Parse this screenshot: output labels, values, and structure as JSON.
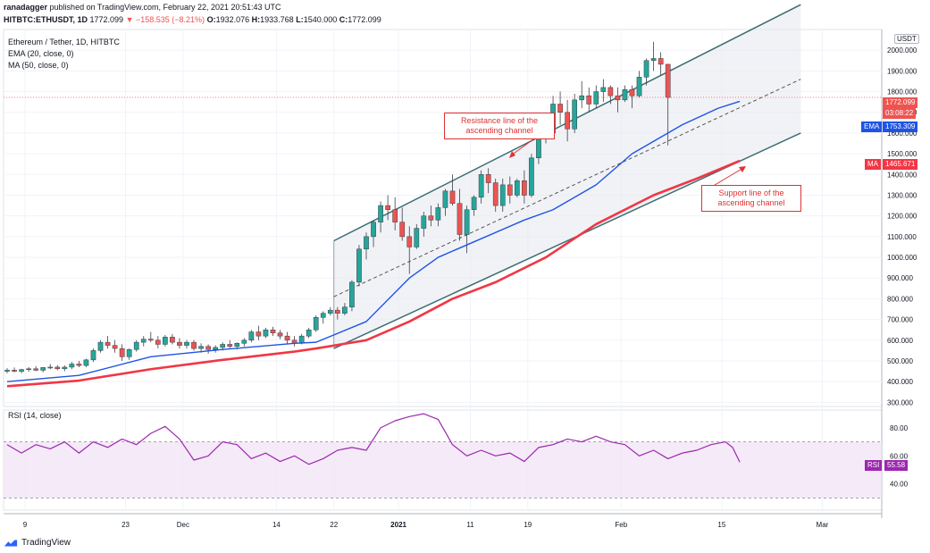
{
  "header": {
    "publisher": "ranadagger",
    "published_text": "published on TradingView.com, February 22, 2021 20:51:43 UTC",
    "symbol": "HITBTC:ETHUSDT, 1D",
    "last": "1772.099",
    "change": "▼ −158.535 (−8.21%)",
    "open_label": "O:",
    "open": "1932.076",
    "high_label": "H:",
    "high": "1933.768",
    "low_label": "L:",
    "low": "1540.000",
    "close_label": "C:",
    "close": "1772.099"
  },
  "legend": {
    "title": "Ethereum / Tether, 1D, HITBTC",
    "ema": "EMA (20, close, 0)",
    "ma": "MA (50, close, 0)",
    "rsi": "RSI (14, close)"
  },
  "price_scale": {
    "currency": "USDT",
    "last_price": "1772.099",
    "countdown": "03:08:22",
    "ema_label": "EMA",
    "ema_value": "1753.309",
    "ma_label": "MA",
    "ma_value": "1465.671",
    "rsi_label": "RSI",
    "rsi_value": "55.58"
  },
  "annotations": {
    "resistance": "Resistance line of the ascending channel",
    "support": "Support line of the ascending channel"
  },
  "footer": {
    "brand": "TradingView"
  },
  "colors": {
    "up": "#26a69a",
    "down": "#ef5350",
    "ema": "#1e53e5",
    "ma": "#f23645",
    "rsi": "#9c27b0",
    "channel": "#3c6e71",
    "annotation": "#e03131"
  },
  "chart_data": [
    {
      "type": "candlestick",
      "title": "Ethereum / Tether, 1D, HITBTC",
      "y_ticks": [
        "300.000",
        "400.000",
        "500.000",
        "600.000",
        "700.000",
        "800.000",
        "900.000",
        "1000.000",
        "1100.000",
        "1200.000",
        "1300.000",
        "1400.000",
        "1500.000",
        "1600.000",
        "1700.000",
        "1800.000",
        "1900.000",
        "2000.000"
      ],
      "ylim": [
        280,
        2100
      ],
      "x_ticks": [
        {
          "label": "9",
          "day": 0
        },
        {
          "label": "23",
          "day": 14
        },
        {
          "label": "Dec",
          "day": 22
        },
        {
          "label": "14",
          "day": 35
        },
        {
          "label": "22",
          "day": 43
        },
        {
          "label": "2021",
          "day": 52
        },
        {
          "label": "11",
          "day": 62
        },
        {
          "label": "19",
          "day": 70
        },
        {
          "label": "Feb",
          "day": 83
        },
        {
          "label": "15",
          "day": 97
        },
        {
          "label": "Mar",
          "day": 111
        }
      ],
      "candles": [
        [
          450,
          465,
          440,
          455
        ],
        [
          455,
          468,
          445,
          450
        ],
        [
          450,
          462,
          440,
          458
        ],
        [
          458,
          470,
          448,
          462
        ],
        [
          462,
          475,
          450,
          455
        ],
        [
          455,
          470,
          445,
          468
        ],
        [
          468,
          485,
          460,
          470
        ],
        [
          470,
          480,
          455,
          462
        ],
        [
          462,
          478,
          450,
          470
        ],
        [
          470,
          495,
          460,
          485
        ],
        [
          485,
          500,
          470,
          478
        ],
        [
          478,
          510,
          470,
          505
        ],
        [
          505,
          560,
          495,
          550
        ],
        [
          550,
          600,
          540,
          590
        ],
        [
          590,
          620,
          560,
          575
        ],
        [
          575,
          600,
          540,
          560
        ],
        [
          560,
          580,
          500,
          520
        ],
        [
          520,
          560,
          505,
          555
        ],
        [
          555,
          600,
          545,
          590
        ],
        [
          590,
          620,
          570,
          605
        ],
        [
          605,
          640,
          590,
          600
        ],
        [
          600,
          620,
          560,
          580
        ],
        [
          580,
          625,
          570,
          615
        ],
        [
          615,
          630,
          580,
          590
        ],
        [
          590,
          610,
          560,
          575
        ],
        [
          575,
          600,
          560,
          590
        ],
        [
          590,
          600,
          550,
          560
        ],
        [
          560,
          585,
          540,
          570
        ],
        [
          570,
          580,
          535,
          555
        ],
        [
          555,
          575,
          540,
          565
        ],
        [
          565,
          590,
          550,
          580
        ],
        [
          580,
          600,
          560,
          570
        ],
        [
          570,
          590,
          555,
          585
        ],
        [
          585,
          610,
          570,
          600
        ],
        [
          600,
          650,
          590,
          640
        ],
        [
          640,
          670,
          600,
          620
        ],
        [
          620,
          660,
          610,
          650
        ],
        [
          650,
          665,
          620,
          635
        ],
        [
          635,
          650,
          605,
          620
        ],
        [
          620,
          640,
          580,
          600
        ],
        [
          600,
          620,
          570,
          585
        ],
        [
          585,
          630,
          580,
          620
        ],
        [
          620,
          660,
          610,
          650
        ],
        [
          650,
          720,
          640,
          710
        ],
        [
          710,
          740,
          680,
          730
        ],
        [
          730,
          760,
          720,
          745
        ],
        [
          745,
          760,
          700,
          730
        ],
        [
          730,
          780,
          720,
          760
        ],
        [
          760,
          890,
          740,
          880
        ],
        [
          880,
          1060,
          860,
          1040
        ],
        [
          1040,
          1120,
          990,
          1100
        ],
        [
          1100,
          1180,
          1050,
          1170
        ],
        [
          1170,
          1270,
          1120,
          1250
        ],
        [
          1250,
          1300,
          1180,
          1230
        ],
        [
          1230,
          1290,
          1130,
          1170
        ],
        [
          1170,
          1240,
          1080,
          1100
        ],
        [
          1100,
          1150,
          920,
          1050
        ],
        [
          1050,
          1160,
          1040,
          1140
        ],
        [
          1140,
          1220,
          1100,
          1200
        ],
        [
          1200,
          1250,
          1150,
          1180
        ],
        [
          1180,
          1260,
          1150,
          1240
        ],
        [
          1240,
          1330,
          1200,
          1320
        ],
        [
          1320,
          1400,
          1250,
          1260
        ],
        [
          1260,
          1330,
          1080,
          1110
        ],
        [
          1110,
          1250,
          1020,
          1230
        ],
        [
          1230,
          1300,
          1200,
          1290
        ],
        [
          1290,
          1420,
          1260,
          1400
        ],
        [
          1400,
          1430,
          1310,
          1360
        ],
        [
          1360,
          1380,
          1220,
          1250
        ],
        [
          1250,
          1380,
          1220,
          1350
        ],
        [
          1350,
          1390,
          1260,
          1300
        ],
        [
          1300,
          1380,
          1290,
          1370
        ],
        [
          1370,
          1420,
          1260,
          1300
        ],
        [
          1300,
          1500,
          1290,
          1480
        ],
        [
          1480,
          1650,
          1450,
          1640
        ],
        [
          1640,
          1680,
          1550,
          1600
        ],
        [
          1600,
          1780,
          1580,
          1740
        ],
        [
          1740,
          1800,
          1640,
          1700
        ],
        [
          1700,
          1760,
          1560,
          1620
        ],
        [
          1620,
          1790,
          1600,
          1760
        ],
        [
          1760,
          1850,
          1720,
          1780
        ],
        [
          1780,
          1820,
          1700,
          1740
        ],
        [
          1740,
          1830,
          1720,
          1800
        ],
        [
          1800,
          1860,
          1750,
          1820
        ],
        [
          1820,
          1830,
          1740,
          1780
        ],
        [
          1780,
          1820,
          1700,
          1760
        ],
        [
          1760,
          1830,
          1750,
          1810
        ],
        [
          1810,
          1830,
          1720,
          1780
        ],
        [
          1780,
          1900,
          1770,
          1870
        ],
        [
          1870,
          1960,
          1830,
          1950
        ],
        [
          1950,
          2040,
          1900,
          1960
        ],
        [
          1960,
          1990,
          1880,
          1932
        ],
        [
          1932,
          1934,
          1540,
          1772
        ]
      ],
      "ema20": [
        [
          0,
          400
        ],
        [
          10,
          430
        ],
        [
          20,
          520
        ],
        [
          30,
          555
        ],
        [
          40,
          585
        ],
        [
          43,
          590
        ],
        [
          50,
          690
        ],
        [
          56,
          900
        ],
        [
          60,
          1000
        ],
        [
          66,
          1090
        ],
        [
          72,
          1180
        ],
        [
          76,
          1230
        ],
        [
          82,
          1350
        ],
        [
          87,
          1500
        ],
        [
          94,
          1640
        ],
        [
          99,
          1720
        ],
        [
          102,
          1753
        ]
      ],
      "ma50": [
        [
          0,
          378
        ],
        [
          10,
          405
        ],
        [
          20,
          460
        ],
        [
          30,
          505
        ],
        [
          40,
          545
        ],
        [
          43,
          560
        ],
        [
          50,
          600
        ],
        [
          56,
          690
        ],
        [
          62,
          800
        ],
        [
          68,
          880
        ],
        [
          75,
          1000
        ],
        [
          82,
          1160
        ],
        [
          90,
          1300
        ],
        [
          96,
          1380
        ],
        [
          102,
          1466
        ]
      ],
      "channel": {
        "resistance": [
          [
            43,
            1080
          ],
          [
            108,
            2220
          ]
        ],
        "support": [
          [
            43,
            560
          ],
          [
            108,
            1600
          ]
        ],
        "midline": [
          [
            43,
            810
          ],
          [
            108,
            1860
          ]
        ],
        "fill_start": 43
      },
      "last_price": 1772.099
    },
    {
      "type": "line",
      "title": "RSI (14, close)",
      "y_ticks": [
        "40.00",
        "60.00",
        "80.00"
      ],
      "ylim": [
        22,
        92
      ],
      "bands": [
        30,
        70
      ],
      "values": [
        [
          0,
          68
        ],
        [
          2,
          62
        ],
        [
          4,
          68
        ],
        [
          6,
          65
        ],
        [
          8,
          70
        ],
        [
          10,
          62
        ],
        [
          12,
          70
        ],
        [
          14,
          66
        ],
        [
          16,
          72
        ],
        [
          18,
          68
        ],
        [
          20,
          76
        ],
        [
          22,
          81
        ],
        [
          24,
          72
        ],
        [
          26,
          57
        ],
        [
          28,
          60
        ],
        [
          30,
          70
        ],
        [
          32,
          68
        ],
        [
          34,
          58
        ],
        [
          36,
          62
        ],
        [
          38,
          56
        ],
        [
          40,
          60
        ],
        [
          42,
          54
        ],
        [
          44,
          58
        ],
        [
          46,
          64
        ],
        [
          48,
          66
        ],
        [
          50,
          64
        ],
        [
          52,
          80
        ],
        [
          54,
          85
        ],
        [
          56,
          88
        ],
        [
          58,
          90
        ],
        [
          60,
          86
        ],
        [
          62,
          68
        ],
        [
          64,
          60
        ],
        [
          66,
          64
        ],
        [
          68,
          60
        ],
        [
          70,
          62
        ],
        [
          72,
          56
        ],
        [
          74,
          66
        ],
        [
          76,
          68
        ],
        [
          78,
          72
        ],
        [
          80,
          70
        ],
        [
          82,
          74
        ],
        [
          84,
          70
        ],
        [
          86,
          68
        ],
        [
          88,
          60
        ],
        [
          90,
          64
        ],
        [
          92,
          58
        ],
        [
          94,
          62
        ],
        [
          96,
          64
        ],
        [
          98,
          68
        ],
        [
          100,
          70
        ],
        [
          101,
          66
        ],
        [
          102,
          55.58
        ]
      ]
    }
  ]
}
